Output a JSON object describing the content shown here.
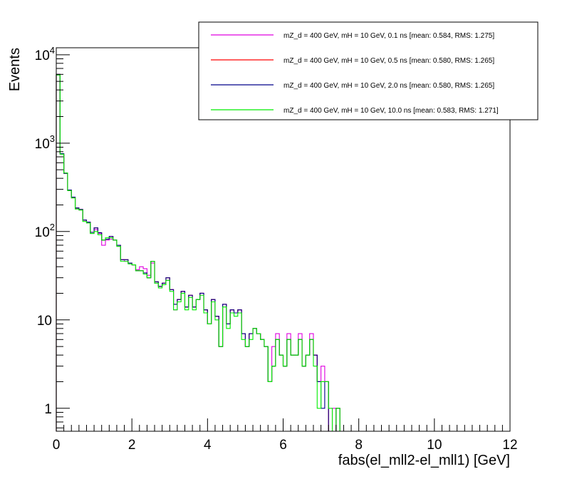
{
  "chart_data": {
    "type": "histogram",
    "title": "",
    "xlabel": "fabs(el_mll2-el_mll1) [GeV]",
    "ylabel": "Events",
    "xlim": [
      0,
      12
    ],
    "ylim": [
      0.55,
      12000
    ],
    "yscale": "log",
    "x_ticks": [
      "0",
      "2",
      "4",
      "6",
      "8",
      "10",
      "12"
    ],
    "y_ticks": [
      {
        "value": 1,
        "base": "1",
        "exp": ""
      },
      {
        "value": 10,
        "base": "10",
        "exp": ""
      },
      {
        "value": 100,
        "base": "10",
        "exp": "2"
      },
      {
        "value": 1000,
        "base": "10",
        "exp": "3"
      },
      {
        "value": 10000,
        "base": "10",
        "exp": "4"
      }
    ],
    "bin_width": 0.1,
    "legend_position": "top-right",
    "series": [
      {
        "name": "mZ_d = 400 GeV, mH = 10 GeV, 0.1 ns [mean: 0.584, RMS: 1.275]",
        "color": "#e000e0",
        "values": [
          5900,
          750,
          460,
          290,
          240,
          180,
          175,
          135,
          125,
          95,
          105,
          95,
          70,
          80,
          82,
          80,
          68,
          48,
          46,
          44,
          42,
          37,
          40,
          38,
          32,
          44,
          26,
          24,
          26,
          28,
          22,
          13,
          17,
          21,
          14,
          19,
          14,
          17,
          20,
          13,
          9,
          17,
          11,
          5,
          15,
          9,
          13,
          12,
          13,
          7,
          5,
          7,
          8,
          7,
          6,
          5,
          2,
          5,
          7,
          4,
          3,
          7,
          4,
          4,
          7,
          3,
          4,
          7,
          4,
          2,
          3,
          2,
          0.5,
          1,
          0.5,
          0.5,
          0.5,
          0.5,
          0.5,
          0.5,
          0.5,
          0.5,
          0.5,
          0.5,
          0.5,
          0.5,
          0.5,
          0.5,
          0.5,
          0.5,
          0.5,
          0.5,
          0.5,
          0.5,
          0.5,
          0.5,
          0.5,
          0.5,
          0.5,
          0.5,
          0.5,
          0.5,
          0.5,
          0.5,
          0.5,
          0.5,
          0.5,
          0.5,
          0.5,
          0.5,
          0.5,
          0.5,
          0.5,
          0.5,
          0.5,
          0.5,
          0.5,
          0.5,
          0.5,
          0.5
        ]
      },
      {
        "name": "mZ_d = 400 GeV, mH = 10 GeV, 0.5 ns [mean: 0.580, RMS: 1.265]",
        "color": "#ff0000",
        "values": [
          6000,
          760,
          455,
          295,
          245,
          185,
          178,
          135,
          128,
          98,
          110,
          97,
          80,
          82,
          88,
          80,
          70,
          48,
          48,
          44,
          42,
          36,
          36,
          34,
          30,
          46,
          27,
          24,
          26,
          30,
          22,
          15,
          17,
          21,
          14,
          19,
          14,
          17,
          20,
          13,
          9,
          17,
          11,
          5,
          15,
          9,
          13,
          12,
          13,
          7,
          5,
          7,
          8,
          7,
          6,
          5,
          2,
          3,
          6,
          4,
          3,
          6,
          4,
          4,
          6,
          3,
          4,
          6,
          4,
          2,
          2,
          2,
          0.5,
          0.5,
          1,
          0.5,
          0.5,
          0.5,
          0.5,
          0.5,
          0.5,
          0.5,
          0.5,
          0.5,
          0.5,
          0.5,
          0.5,
          0.5,
          0.5,
          0.5,
          0.5,
          0.5,
          0.5,
          0.5,
          0.5,
          0.5,
          0.5,
          0.5,
          0.5,
          0.5,
          0.5,
          0.5,
          0.5,
          0.5,
          0.5,
          0.5,
          0.5,
          0.5,
          0.5,
          0.5,
          0.5,
          0.5,
          0.5,
          0.5,
          0.5,
          0.5,
          0.5,
          0.5,
          0.5,
          0.5
        ]
      },
      {
        "name": "mZ_d = 400 GeV, mH = 10 GeV, 2.0 ns [mean: 0.580, RMS: 1.265]",
        "color": "#00008b",
        "values": [
          6000,
          760,
          455,
          295,
          245,
          185,
          178,
          135,
          128,
          98,
          110,
          97,
          80,
          82,
          88,
          80,
          70,
          48,
          48,
          44,
          42,
          36,
          36,
          34,
          30,
          46,
          27,
          24,
          26,
          30,
          22,
          15,
          17,
          21,
          14,
          19,
          14,
          17,
          20,
          13,
          9,
          17,
          11,
          5,
          15,
          9,
          13,
          12,
          13,
          7,
          5,
          7,
          8,
          7,
          6,
          5,
          2,
          3,
          6,
          4,
          3,
          6,
          4,
          4,
          6,
          3,
          4,
          6,
          4,
          2,
          1,
          2,
          0.5,
          0.5,
          1,
          0.5,
          0.5,
          0.5,
          0.5,
          0.5,
          0.5,
          0.5,
          0.5,
          0.5,
          0.5,
          0.5,
          0.5,
          0.5,
          0.5,
          0.5,
          0.5,
          0.5,
          0.5,
          0.5,
          0.5,
          0.5,
          0.5,
          0.5,
          0.5,
          0.5,
          0.5,
          0.5,
          0.5,
          0.5,
          0.5,
          0.5,
          0.5,
          0.5,
          0.5,
          0.5,
          0.5,
          0.5,
          0.5,
          0.5,
          0.5,
          0.5,
          0.5,
          0.5,
          0.5,
          0.5
        ]
      },
      {
        "name": "mZ_d = 400 GeV, mH = 10 GeV, 10.0 ns [mean: 0.583, RMS: 1.271]",
        "color": "#00ee00",
        "values": [
          5900,
          750,
          460,
          290,
          240,
          180,
          175,
          130,
          125,
          95,
          100,
          92,
          80,
          85,
          85,
          80,
          68,
          46,
          46,
          43,
          42,
          36,
          36,
          33,
          30,
          46,
          26,
          23,
          25,
          28,
          21,
          13,
          16,
          20,
          13,
          18,
          13,
          17,
          19,
          12,
          9,
          16,
          10,
          5,
          14,
          8,
          12,
          11,
          12,
          6,
          5,
          6,
          8,
          7,
          6,
          5,
          2,
          3,
          6,
          4,
          3,
          6,
          4,
          4,
          6,
          3,
          4,
          6,
          3,
          1,
          2,
          2,
          1,
          0.5,
          1,
          0.5,
          0.5,
          0.5,
          0.5,
          0.5,
          0.5,
          0.5,
          0.5,
          0.5,
          0.5,
          0.5,
          0.5,
          0.5,
          0.5,
          0.5,
          0.5,
          0.5,
          0.5,
          0.5,
          0.5,
          0.5,
          0.5,
          0.5,
          0.5,
          0.5,
          0.5,
          0.5,
          0.5,
          0.5,
          0.5,
          0.5,
          0.5,
          0.5,
          0.5,
          0.5,
          0.5,
          0.5,
          0.5,
          0.5,
          0.5,
          0.5,
          0.5,
          0.5,
          0.5,
          0.5
        ]
      }
    ]
  }
}
